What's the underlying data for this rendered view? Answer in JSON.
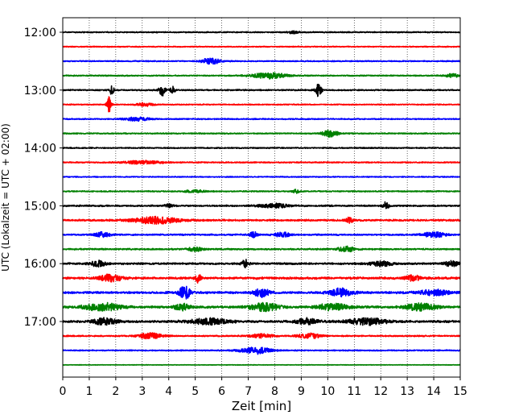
{
  "chart_data": {
    "type": "line",
    "title": "",
    "xlabel": "Zeit  [min]",
    "ylabel": "UTC (Lokalzeit = UTC + 02:00)",
    "xlim": [
      0,
      15
    ],
    "x_ticks": [
      0,
      1,
      2,
      3,
      4,
      5,
      6,
      7,
      8,
      9,
      10,
      11,
      12,
      13,
      14,
      15
    ],
    "x_tick_labels": [
      "0",
      "1",
      "2",
      "3",
      "4",
      "5",
      "6",
      "7",
      "8",
      "9",
      "10",
      "11",
      "12",
      "13",
      "14",
      "15"
    ],
    "x_grid": "dotted vertical lines at every minute",
    "y_ticks": [
      {
        "row": 0,
        "label": "12:00"
      },
      {
        "row": 4,
        "label": "13:00"
      },
      {
        "row": 8,
        "label": "14:00"
      },
      {
        "row": 12,
        "label": "15:00"
      },
      {
        "row": 16,
        "label": "16:00"
      },
      {
        "row": 20,
        "label": "17:00"
      }
    ],
    "row_interval_minutes": 15,
    "color_cycle": [
      "#000000",
      "#ff0000",
      "#0000ff",
      "#008000"
    ],
    "traces": [
      {
        "start": "12:00",
        "color": "#000000",
        "noise": 0.35,
        "events": [
          {
            "t": 8.7,
            "a": 0.9,
            "w": 0.15
          }
        ]
      },
      {
        "start": "12:15",
        "color": "#ff0000",
        "noise": 0.3,
        "events": []
      },
      {
        "start": "12:30",
        "color": "#0000ff",
        "noise": 0.35,
        "events": [
          {
            "t": 5.6,
            "a": 2.4,
            "w": 0.25
          }
        ]
      },
      {
        "start": "12:45",
        "color": "#008000",
        "noise": 0.35,
        "events": [
          {
            "t": 7.8,
            "a": 2.2,
            "w": 0.45
          },
          {
            "t": 14.7,
            "a": 1.5,
            "w": 0.15
          }
        ]
      },
      {
        "start": "13:00",
        "color": "#000000",
        "noise": 0.4,
        "events": [
          {
            "t": 1.85,
            "a": 4.5,
            "w": 0.05
          },
          {
            "t": 3.75,
            "a": 4.5,
            "w": 0.08
          },
          {
            "t": 4.15,
            "a": 2.8,
            "w": 0.06
          },
          {
            "t": 9.65,
            "a": 5.0,
            "w": 0.08
          }
        ]
      },
      {
        "start": "13:15",
        "color": "#ff0000",
        "noise": 0.3,
        "events": [
          {
            "t": 1.75,
            "a": 6.0,
            "w": 0.06
          },
          {
            "t": 3.1,
            "a": 1.4,
            "w": 0.2
          }
        ]
      },
      {
        "start": "13:30",
        "color": "#0000ff",
        "noise": 0.35,
        "events": [
          {
            "t": 2.8,
            "a": 1.5,
            "w": 0.3
          }
        ]
      },
      {
        "start": "13:45",
        "color": "#008000",
        "noise": 0.35,
        "events": [
          {
            "t": 10.1,
            "a": 3.0,
            "w": 0.2
          }
        ]
      },
      {
        "start": "14:00",
        "color": "#000000",
        "noise": 0.35,
        "events": []
      },
      {
        "start": "14:15",
        "color": "#ff0000",
        "noise": 0.35,
        "events": [
          {
            "t": 3.0,
            "a": 1.2,
            "w": 0.5
          }
        ]
      },
      {
        "start": "14:30",
        "color": "#0000ff",
        "noise": 0.3,
        "events": []
      },
      {
        "start": "14:45",
        "color": "#008000",
        "noise": 0.35,
        "events": [
          {
            "t": 8.8,
            "a": 1.3,
            "w": 0.1
          },
          {
            "t": 5.0,
            "a": 0.8,
            "w": 0.3
          }
        ]
      },
      {
        "start": "15:00",
        "color": "#000000",
        "noise": 0.45,
        "events": [
          {
            "t": 8.0,
            "a": 1.5,
            "w": 0.4
          },
          {
            "t": 12.2,
            "a": 3.0,
            "w": 0.08
          },
          {
            "t": 4.0,
            "a": 1.3,
            "w": 0.1
          }
        ]
      },
      {
        "start": "15:15",
        "color": "#ff0000",
        "noise": 0.55,
        "events": [
          {
            "t": 3.5,
            "a": 2.5,
            "w": 0.6
          },
          {
            "t": 10.8,
            "a": 2.0,
            "w": 0.1
          }
        ]
      },
      {
        "start": "15:30",
        "color": "#0000ff",
        "noise": 0.45,
        "events": [
          {
            "t": 1.5,
            "a": 1.8,
            "w": 0.2
          },
          {
            "t": 7.2,
            "a": 2.2,
            "w": 0.1
          },
          {
            "t": 8.3,
            "a": 1.8,
            "w": 0.2
          },
          {
            "t": 14.0,
            "a": 2.0,
            "w": 0.3
          }
        ]
      },
      {
        "start": "15:45",
        "color": "#008000",
        "noise": 0.45,
        "events": [
          {
            "t": 5.0,
            "a": 1.5,
            "w": 0.2
          },
          {
            "t": 10.7,
            "a": 2.2,
            "w": 0.2
          }
        ]
      },
      {
        "start": "16:00",
        "color": "#000000",
        "noise": 0.55,
        "events": [
          {
            "t": 1.3,
            "a": 2.2,
            "w": 0.2
          },
          {
            "t": 6.9,
            "a": 2.8,
            "w": 0.1
          },
          {
            "t": 12.0,
            "a": 1.8,
            "w": 0.3
          },
          {
            "t": 14.7,
            "a": 2.0,
            "w": 0.2
          }
        ]
      },
      {
        "start": "16:15",
        "color": "#ff0000",
        "noise": 0.65,
        "events": [
          {
            "t": 1.8,
            "a": 2.6,
            "w": 0.3
          },
          {
            "t": 5.1,
            "a": 3.4,
            "w": 0.08
          },
          {
            "t": 13.2,
            "a": 2.2,
            "w": 0.2
          }
        ]
      },
      {
        "start": "16:30",
        "color": "#0000ff",
        "noise": 0.65,
        "events": [
          {
            "t": 4.6,
            "a": 5.0,
            "w": 0.15
          },
          {
            "t": 7.5,
            "a": 3.2,
            "w": 0.2
          },
          {
            "t": 10.5,
            "a": 3.0,
            "w": 0.3
          },
          {
            "t": 14.0,
            "a": 2.0,
            "w": 0.4
          }
        ]
      },
      {
        "start": "16:45",
        "color": "#008000",
        "noise": 0.65,
        "events": [
          {
            "t": 1.5,
            "a": 2.8,
            "w": 0.5
          },
          {
            "t": 4.5,
            "a": 2.5,
            "w": 0.2
          },
          {
            "t": 7.6,
            "a": 3.0,
            "w": 0.4
          },
          {
            "t": 10.2,
            "a": 2.6,
            "w": 0.4
          },
          {
            "t": 13.5,
            "a": 2.6,
            "w": 0.4
          }
        ]
      },
      {
        "start": "17:00",
        "color": "#000000",
        "noise": 0.65,
        "events": [
          {
            "t": 1.6,
            "a": 2.5,
            "w": 0.3
          },
          {
            "t": 5.5,
            "a": 2.2,
            "w": 0.5
          },
          {
            "t": 9.2,
            "a": 2.2,
            "w": 0.3
          },
          {
            "t": 11.5,
            "a": 2.5,
            "w": 0.5
          }
        ]
      },
      {
        "start": "17:15",
        "color": "#ff0000",
        "noise": 0.4,
        "events": [
          {
            "t": 3.3,
            "a": 2.3,
            "w": 0.3
          },
          {
            "t": 7.5,
            "a": 1.5,
            "w": 0.3
          },
          {
            "t": 9.3,
            "a": 2.0,
            "w": 0.3
          }
        ]
      },
      {
        "start": "17:30",
        "color": "#0000ff",
        "noise": 0.35,
        "events": [
          {
            "t": 7.3,
            "a": 2.6,
            "w": 0.4
          }
        ]
      },
      {
        "start": "17:45",
        "color": "#008000",
        "noise": 0.15,
        "events": []
      }
    ]
  }
}
